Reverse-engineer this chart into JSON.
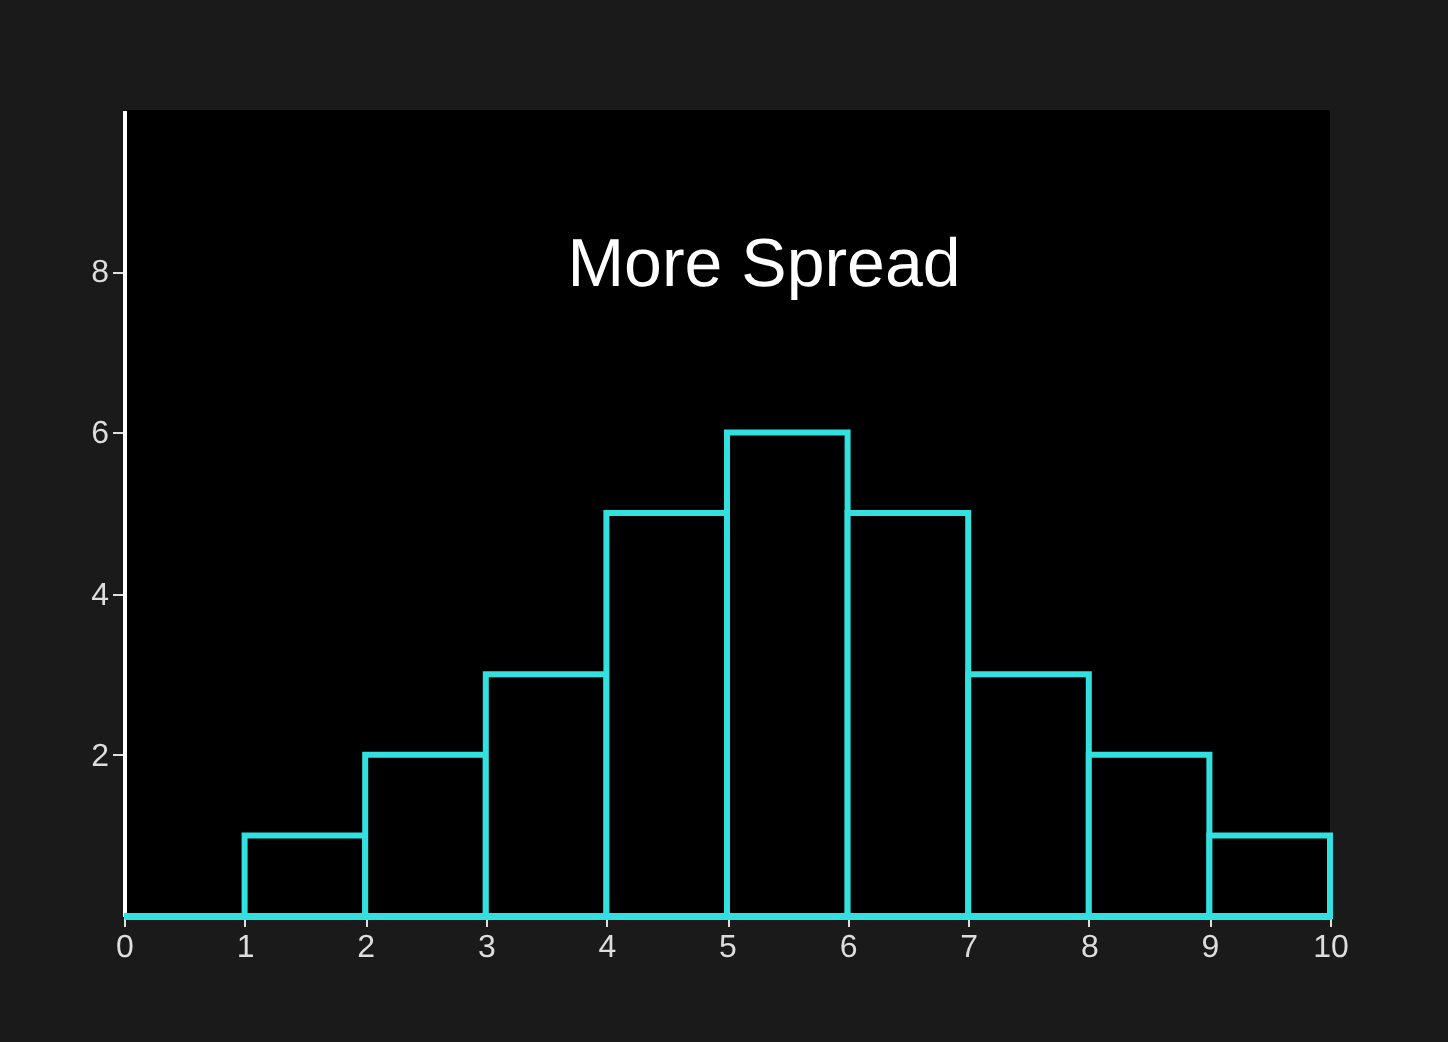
{
  "chart_data": {
    "type": "histogram",
    "title": "More Spread",
    "bins": [
      0,
      1,
      2,
      3,
      4,
      5,
      6,
      7,
      8,
      9,
      10
    ],
    "values": [
      0,
      1,
      2,
      3,
      5,
      6,
      5,
      3,
      2,
      1
    ],
    "color": "#33e0e0",
    "xlim": [
      0,
      10
    ],
    "xticks": [
      0,
      1,
      2,
      3,
      4,
      5,
      6,
      7,
      8,
      9,
      10
    ],
    "ylim": [
      0,
      10
    ],
    "yticks": [
      2,
      4,
      6,
      8
    ],
    "grid": false
  }
}
